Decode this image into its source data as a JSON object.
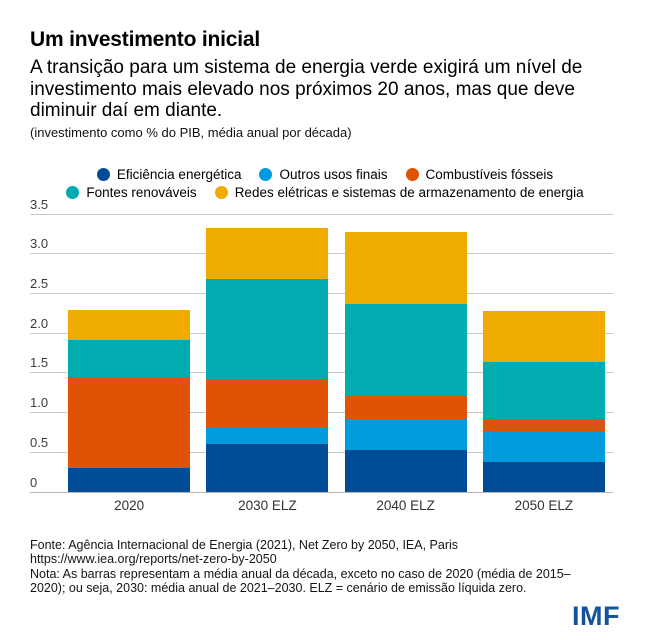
{
  "header": {
    "title": "Um investimento inicial",
    "subtitle": "A transição para um sistema de energia verde exigirá um nível de investimento mais elevado nos próximos 20 anos, mas que deve diminuir daí em diante.",
    "unit_note": "(investimento como % do PIB, média anual por década)"
  },
  "chart_data": {
    "type": "bar",
    "stacked": true,
    "title": "Um investimento inicial",
    "ylabel": "investimento como % do PIB, média anual por década",
    "categories": [
      "2020",
      "2030 ELZ",
      "2040 ELZ",
      "2050 ELZ"
    ],
    "series": [
      {
        "name": "Eficiência energética",
        "color": "#004C97",
        "values": [
          0.3,
          0.6,
          0.52,
          0.37
        ]
      },
      {
        "name": "Outros usos finais",
        "color": "#009CDE",
        "values": [
          0.0,
          0.2,
          0.39,
          0.39
        ]
      },
      {
        "name": "Combustíveis fósseis",
        "color": "#E05206",
        "values": [
          1.13,
          0.62,
          0.29,
          0.15
        ]
      },
      {
        "name": "Fontes renováveis",
        "color": "#00ACB0",
        "values": [
          0.48,
          1.25,
          1.16,
          0.72
        ]
      },
      {
        "name": "Redes elétricas e sistemas de armazenamento de energia",
        "color": "#F0AB00",
        "values": [
          0.37,
          0.65,
          0.91,
          0.64
        ]
      }
    ],
    "totals": [
      2.28,
      3.32,
      3.27,
      2.27
    ],
    "ylim": [
      0,
      3.5
    ],
    "yticks": [
      "3.5",
      "3.0",
      "2.5",
      "2.0",
      "1.5",
      "1.0",
      "0.5",
      "0"
    ],
    "grid": true,
    "legend_position": "top",
    "legend_rows": [
      [
        0,
        1,
        2
      ],
      [
        3,
        4
      ]
    ]
  },
  "footer": {
    "source": "Fonte: Agência Internacional de Energia (2021), Net Zero by 2050, IEA, Paris",
    "source_url": "https://www.iea.org/reports/net-zero-by-2050",
    "note": "Nota: As barras representam a média anual da década, exceto no caso de 2020 (média de 2015–2020); ou seja, 2030: média anual de 2021–2030. ELZ = cenário de emissão líquida zero.",
    "logo": "IMF",
    "logo_color": "#14549E"
  }
}
